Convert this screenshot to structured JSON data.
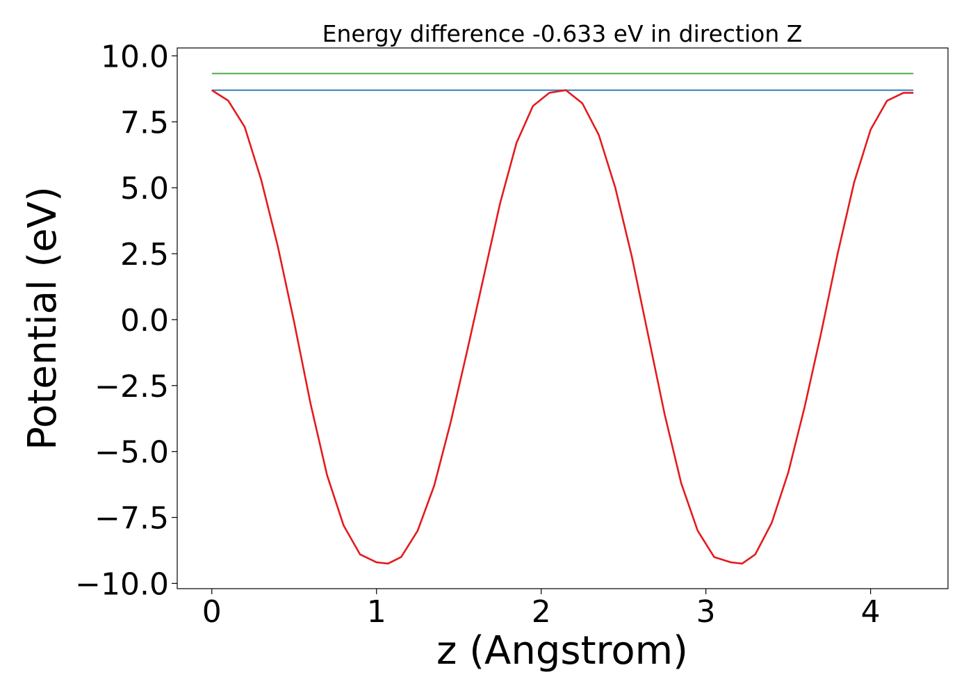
{
  "chart_data": {
    "type": "line",
    "title": "Energy difference -0.633 eV in direction Z",
    "xlabel": "z (Angstrom)",
    "ylabel": "Potential (eV)",
    "xlim": [
      -0.21,
      4.47
    ],
    "ylim": [
      -10.2,
      10.3
    ],
    "xticks": [
      0,
      1,
      2,
      3,
      4
    ],
    "xtick_labels": [
      "0",
      "1",
      "2",
      "3",
      "4"
    ],
    "yticks": [
      10.0,
      7.5,
      5.0,
      2.5,
      0.0,
      -2.5,
      -5.0,
      -7.5,
      -10.0
    ],
    "ytick_labels": [
      "10.0",
      "7.5",
      "5.0",
      "2.5",
      "0.0",
      "−2.5",
      "−5.0",
      "−7.5",
      "−10.0"
    ],
    "grid": false,
    "legend": "none",
    "series": [
      {
        "kind": "curve",
        "color": "#e41a1c",
        "x": [
          0.0,
          0.1,
          0.2,
          0.3,
          0.4,
          0.5,
          0.6,
          0.7,
          0.8,
          0.9,
          1.0,
          1.07,
          1.15,
          1.25,
          1.35,
          1.45,
          1.55,
          1.65,
          1.75,
          1.85,
          1.95,
          2.05,
          2.15,
          2.25,
          2.35,
          2.45,
          2.55,
          2.65,
          2.75,
          2.85,
          2.95,
          3.05,
          3.15,
          3.22,
          3.3,
          3.4,
          3.5,
          3.6,
          3.7,
          3.8,
          3.9,
          4.0,
          4.1,
          4.2,
          4.26
        ],
        "y": [
          8.7,
          8.3,
          7.3,
          5.3,
          2.8,
          -0.1,
          -3.2,
          -5.9,
          -7.8,
          -8.9,
          -9.2,
          -9.25,
          -9.0,
          -8.0,
          -6.3,
          -3.9,
          -1.2,
          1.6,
          4.4,
          6.7,
          8.1,
          8.6,
          8.7,
          8.2,
          7.0,
          5.0,
          2.4,
          -0.6,
          -3.6,
          -6.2,
          -8.0,
          -9.0,
          -9.2,
          -9.25,
          -8.9,
          -7.7,
          -5.8,
          -3.3,
          -0.5,
          2.5,
          5.2,
          7.2,
          8.3,
          8.6,
          8.6
        ]
      },
      {
        "kind": "hline",
        "color": "#4daf4a",
        "y": 9.33,
        "x": [
          0.0,
          4.26
        ]
      },
      {
        "kind": "hline",
        "color": "#377eb8",
        "y": 8.7,
        "x": [
          0.0,
          4.26
        ]
      }
    ]
  }
}
